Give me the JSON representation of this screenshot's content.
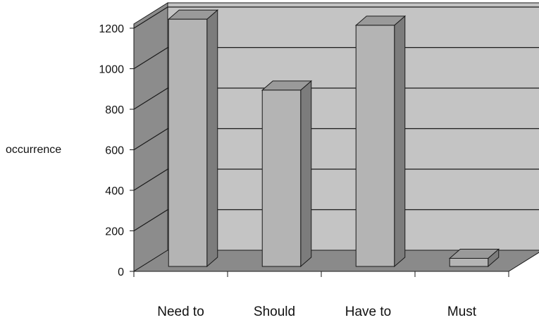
{
  "chart_data": {
    "type": "bar",
    "style": "3d-column",
    "categories": [
      "Need to",
      "Should",
      "Have to",
      "Must"
    ],
    "values": [
      1220,
      870,
      1190,
      40
    ],
    "title": "",
    "xlabel": "",
    "ylabel": "occurrence",
    "ylim": [
      0,
      1200
    ],
    "yticks": [
      0,
      200,
      400,
      600,
      800,
      1000,
      1200
    ],
    "grid": true,
    "legend": "none",
    "colors": {
      "bar_front": "#b4b4b4",
      "bar_side": "#7c7c7c",
      "bar_top": "#9a9a9a",
      "back_wall": "#c4c4c4",
      "side_wall": "#8c8c8c",
      "floor": "#8a8a8a",
      "grid": "#1a1a1a",
      "outline": "#1a1a1a"
    }
  }
}
